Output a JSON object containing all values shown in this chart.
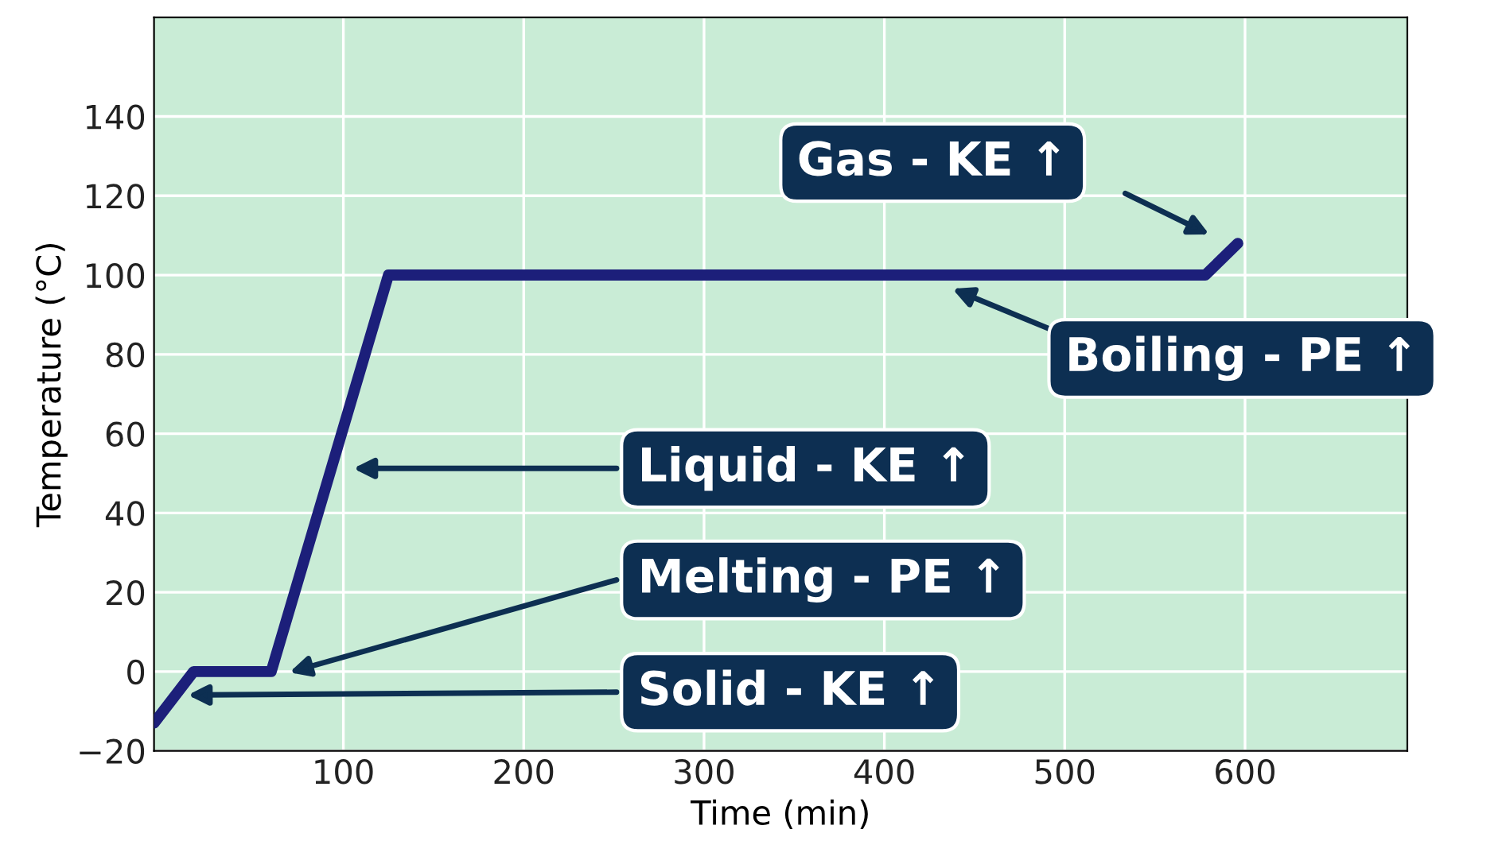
{
  "chart_data": {
    "type": "line",
    "xlabel": "Time (min)",
    "ylabel": "Temperature (°C)",
    "x": [
      -5,
      17,
      60,
      125,
      578,
      596
    ],
    "series": [
      {
        "color": "#1c1f7a",
        "values": [
          -13,
          0,
          0,
          100,
          100,
          108
        ]
      }
    ],
    "xlim": [
      -5,
      690
    ],
    "ylim": [
      -20,
      165
    ],
    "xticks": [
      100,
      200,
      300,
      400,
      500,
      600
    ],
    "yticks": [
      -20,
      0,
      20,
      40,
      60,
      80,
      100,
      120,
      140
    ],
    "grid": true,
    "line_style": "solid",
    "legend": false,
    "annotations": [
      "Gas - KE ↑",
      "Boiling - PE ↑",
      "Liquid - KE ↑",
      "Melting - PE ↑",
      "Solid - KE ↑"
    ]
  }
}
